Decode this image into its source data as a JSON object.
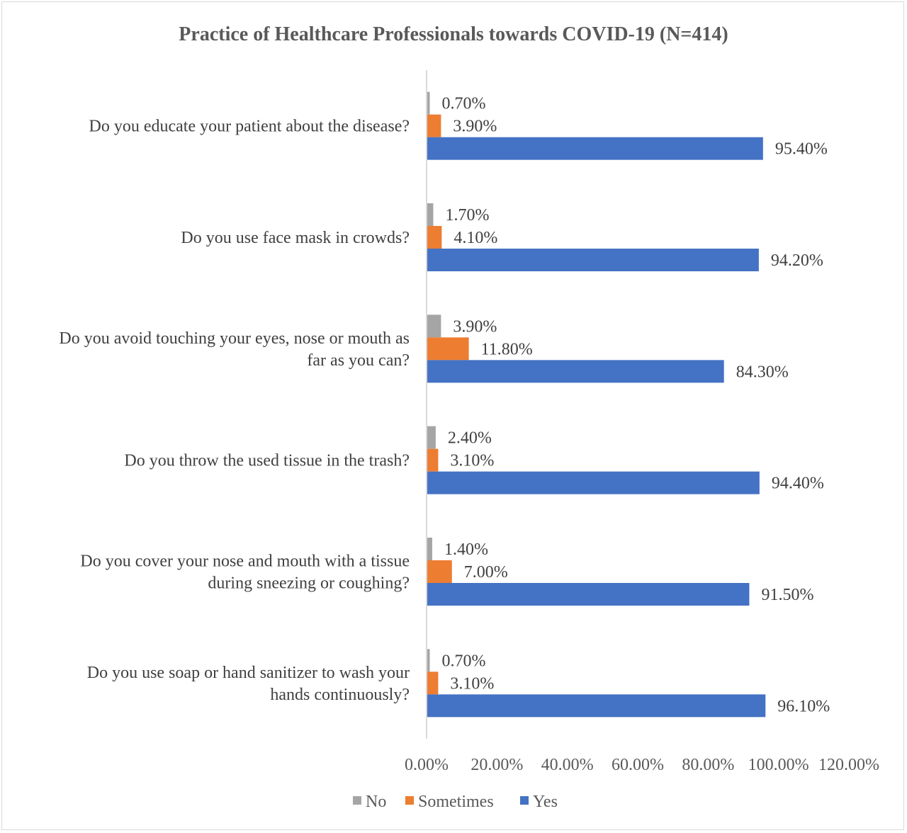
{
  "chart_data": {
    "type": "bar",
    "orientation": "horizontal",
    "title": "Practice of Healthcare Professionals towards COVID-19 (N=414)",
    "categories": [
      [
        "Do you educate your patient about the disease?"
      ],
      [
        "Do you use face mask in crowds?"
      ],
      [
        "Do you avoid touching your eyes, nose or mouth as",
        "far as you can?"
      ],
      [
        "Do you throw the used tissue in the trash?"
      ],
      [
        "Do you cover your nose and mouth with a tissue",
        "during sneezing or coughing?"
      ],
      [
        "Do you use soap or hand sanitizer to wash your",
        "hands continuously?"
      ]
    ],
    "series": [
      {
        "name": "No",
        "color": "#a5a5a5",
        "values": [
          0.7,
          1.7,
          3.9,
          2.4,
          1.4,
          0.7
        ],
        "labels": [
          "0.70%",
          "1.70%",
          "3.90%",
          "2.40%",
          "1.40%",
          "0.70%"
        ]
      },
      {
        "name": "Sometimes",
        "color": "#ed7d31",
        "values": [
          3.9,
          4.1,
          11.8,
          3.1,
          7.0,
          3.1
        ],
        "labels": [
          "3.90%",
          "4.10%",
          "11.80%",
          "3.10%",
          "7.00%",
          "3.10%"
        ]
      },
      {
        "name": "Yes",
        "color": "#4472c4",
        "values": [
          95.4,
          94.2,
          84.3,
          94.4,
          91.5,
          96.1
        ],
        "labels": [
          "95.40%",
          "94.20%",
          "84.30%",
          "94.40%",
          "91.50%",
          "96.10%"
        ]
      }
    ],
    "xlim": [
      0,
      120
    ],
    "xticks": [
      0,
      20,
      40,
      60,
      80,
      100,
      120
    ],
    "xtick_labels": [
      "0.00%",
      "20.00%",
      "40.00%",
      "60.00%",
      "80.00%",
      "100.00%",
      "120.00%"
    ],
    "grid": false,
    "legend_position": "bottom",
    "axis_color": "#d9d9d9"
  }
}
